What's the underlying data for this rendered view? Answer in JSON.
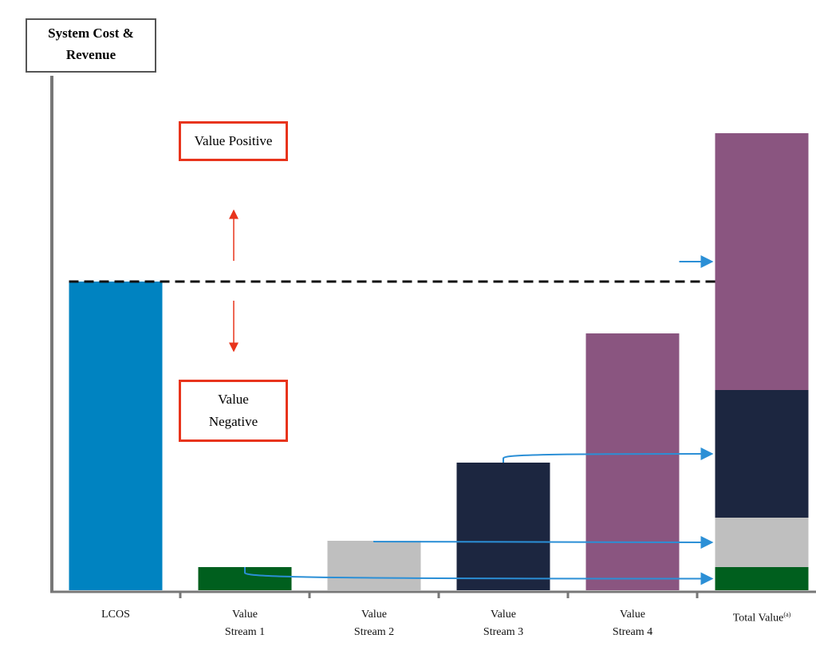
{
  "chart_data": {
    "type": "bar",
    "title": "System Cost & Revenue",
    "categories": [
      "LCOS",
      "Value Stream 1",
      "Value Stream 2",
      "Value Stream 3",
      "Value Stream 4"
    ],
    "values": [
      387,
      29,
      62,
      160,
      322
    ],
    "colors": [
      "#0083c1",
      "#005f1e",
      "#bfbfbf",
      "#1c2640",
      "#8a5580"
    ],
    "total_category": "Total Value",
    "total_note": "(a)",
    "annotations": [
      "Value Positive",
      "Value Negative"
    ],
    "ylim": [
      0,
      640
    ]
  }
}
